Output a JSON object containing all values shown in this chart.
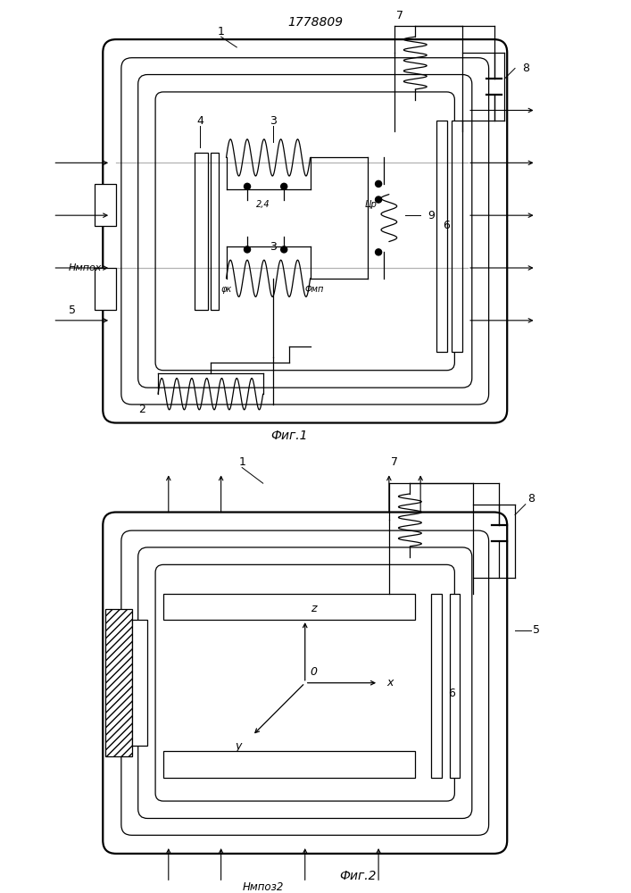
{
  "title": "1778809",
  "fig1_label": "Фиг.1",
  "fig2_label": "Фиг.2",
  "label_1": "1",
  "label_2": "2",
  "label_3": "3",
  "label_4": "4",
  "label_5": "5",
  "label_6": "6",
  "label_7": "7",
  "label_8": "8",
  "label_9": "9",
  "label_Hmpo1": "Нмпох",
  "label_Hmpo2": "Нмпоз",
  "label_subscript2": "2",
  "label_Fmp": "Φмп",
  "label_Fk": "φк",
  "label_24": "2,4",
  "label_Up": "Цр",
  "label_x": "x",
  "label_y": "y",
  "label_z": "z",
  "label_o": "0",
  "line_color": "#000000",
  "bg_color": "#ffffff"
}
